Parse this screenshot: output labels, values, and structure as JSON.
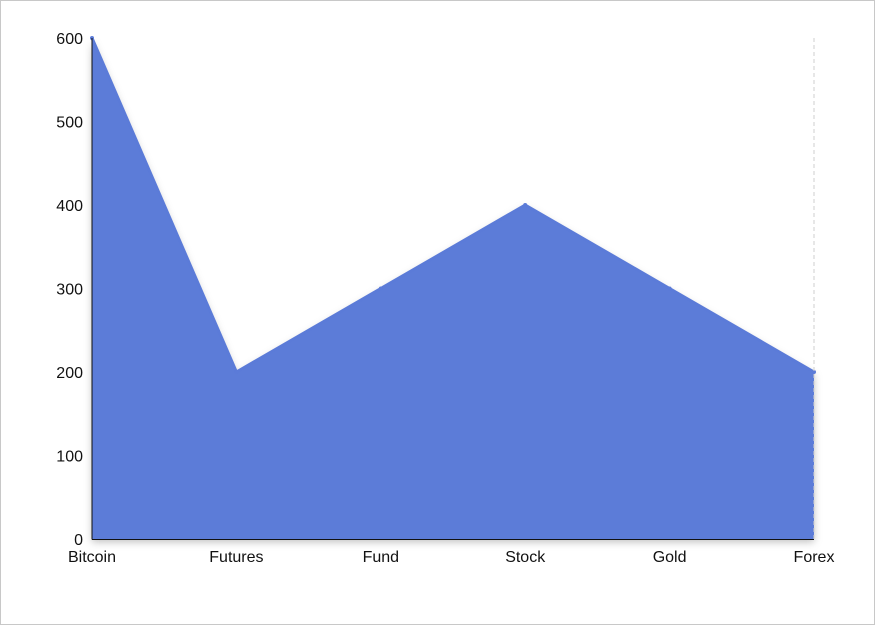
{
  "chart_data": {
    "type": "area",
    "categories": [
      "Bitcoin",
      "Futures",
      "Fund",
      "Stock",
      "Gold",
      "Forex"
    ],
    "series": [
      {
        "values": [
          600,
          200,
          300,
          400,
          300,
          200
        ]
      }
    ],
    "title": "",
    "xlabel": "",
    "ylabel": "",
    "ylim": [
      0,
      600
    ],
    "yticks": [
      0,
      100,
      200,
      300,
      400,
      500,
      600
    ],
    "grid": false,
    "legend": "none",
    "colors": {
      "fill": "#5b7bd8",
      "line": "#5b7bd8",
      "axis": "#111111",
      "guide": "#cfcfcf"
    }
  }
}
